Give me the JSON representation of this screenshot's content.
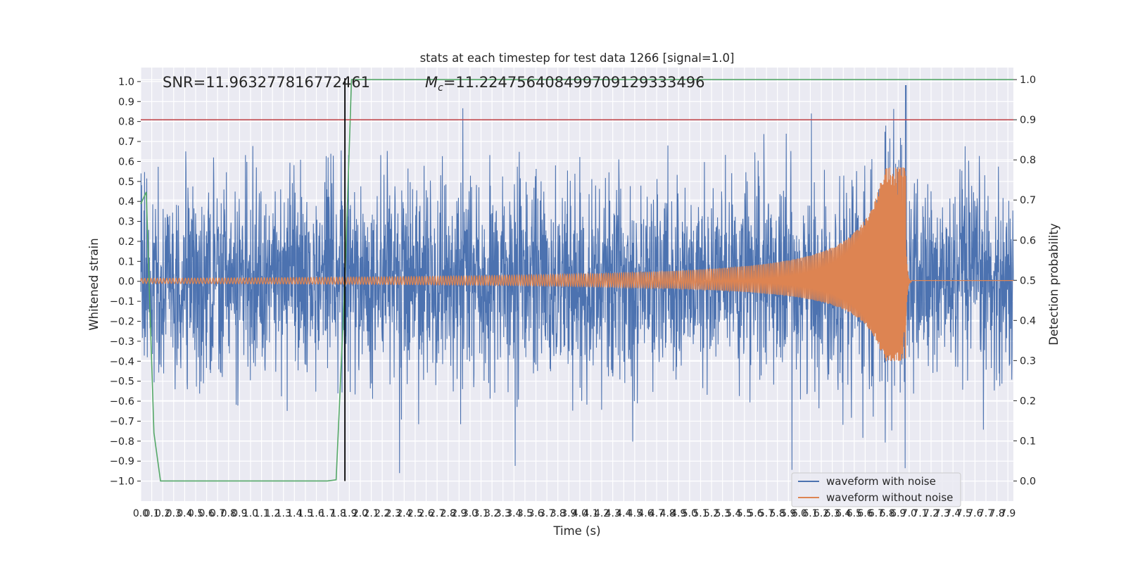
{
  "chart_data": {
    "type": "line",
    "title": "stats at each timestep for test data 1266 [signal=1.0]",
    "xlabel": "Time (s)",
    "ylabel": "Whitened strain",
    "y2label": "Detection probability",
    "xlim": [
      0.0,
      7.95
    ],
    "ylim": [
      -1.1,
      1.07
    ],
    "y2lim": [
      -0.05,
      1.03
    ],
    "x_ticks": [
      "0.0",
      "0.1",
      "0.2",
      "0.3",
      "0.4",
      "0.5",
      "0.6",
      "0.7",
      "0.8",
      "0.9",
      "1.0",
      "1.1",
      "1.2",
      "1.3",
      "1.4",
      "1.5",
      "1.6",
      "1.7",
      "1.8",
      "1.9",
      "2.0",
      "2.1",
      "2.2",
      "2.3",
      "2.4",
      "2.5",
      "2.6",
      "2.7",
      "2.8",
      "2.9",
      "3.0",
      "3.1",
      "3.2",
      "3.3",
      "3.4",
      "3.5",
      "3.6",
      "3.7",
      "3.8",
      "3.9",
      "4.0",
      "4.1",
      "4.2",
      "4.3",
      "4.4",
      "4.5",
      "4.6",
      "4.7",
      "4.8",
      "4.9",
      "5.0",
      "5.1",
      "5.2",
      "5.3",
      "5.4",
      "5.5",
      "5.6",
      "5.7",
      "5.8",
      "5.9",
      "6.0",
      "6.1",
      "6.2",
      "6.3",
      "6.4",
      "6.5",
      "6.6",
      "6.7",
      "6.8",
      "6.9",
      "7.0",
      "7.1",
      "7.2",
      "7.3",
      "7.4",
      "7.5",
      "7.6",
      "7.7",
      "7.8",
      "7.9"
    ],
    "y_ticks": [
      "−1.0",
      "−0.9",
      "−0.8",
      "−0.7",
      "−0.6",
      "−0.5",
      "−0.4",
      "−0.3",
      "−0.2",
      "−0.1",
      "0.0",
      "0.1",
      "0.2",
      "0.3",
      "0.4",
      "0.5",
      "0.6",
      "0.7",
      "0.8",
      "0.9",
      "1.0"
    ],
    "y2_ticks": [
      "0.0",
      "0.1",
      "0.2",
      "0.3",
      "0.4",
      "0.5",
      "0.6",
      "0.7",
      "0.8",
      "0.9",
      "1.0"
    ],
    "annotations": {
      "snr": "SNR=11.963277816772461",
      "mc_symbol": "M",
      "mc_subscript": "c",
      "mc_value": "=11.224756408499709129333496"
    },
    "threshold": {
      "value": 0.9,
      "axis": "y2",
      "color": "#c44e52"
    },
    "detection_time": {
      "x": 1.86,
      "color": "#000000"
    },
    "series": [
      {
        "name": "waveform with noise",
        "color": "#4c72b0",
        "kind": "noise",
        "typical_amplitude": 0.4,
        "peak_x": 6.97,
        "peak_y": 0.98,
        "min_y": -1.0
      },
      {
        "name": "waveform without noise",
        "color": "#dd8452",
        "kind": "chirp",
        "start_amplitude": 0.015,
        "merger_x": 6.97,
        "peak_y": 0.57,
        "min_y": -0.4,
        "ringdown_x": 7.02
      },
      {
        "name": "detection probability",
        "color": "#55a868",
        "axis": "y2",
        "x": [
          0.0,
          0.05,
          0.12,
          0.18,
          0.2,
          1.7,
          1.78,
          1.86,
          1.92,
          7.95
        ],
        "y": [
          0.69,
          0.72,
          0.12,
          0.0,
          0.0,
          0.0,
          0.003,
          0.5,
          1.0,
          1.0
        ]
      }
    ],
    "legend": {
      "placement": "lower-right",
      "entries": [
        "waveform with noise",
        "waveform without noise"
      ]
    },
    "grid": true
  }
}
